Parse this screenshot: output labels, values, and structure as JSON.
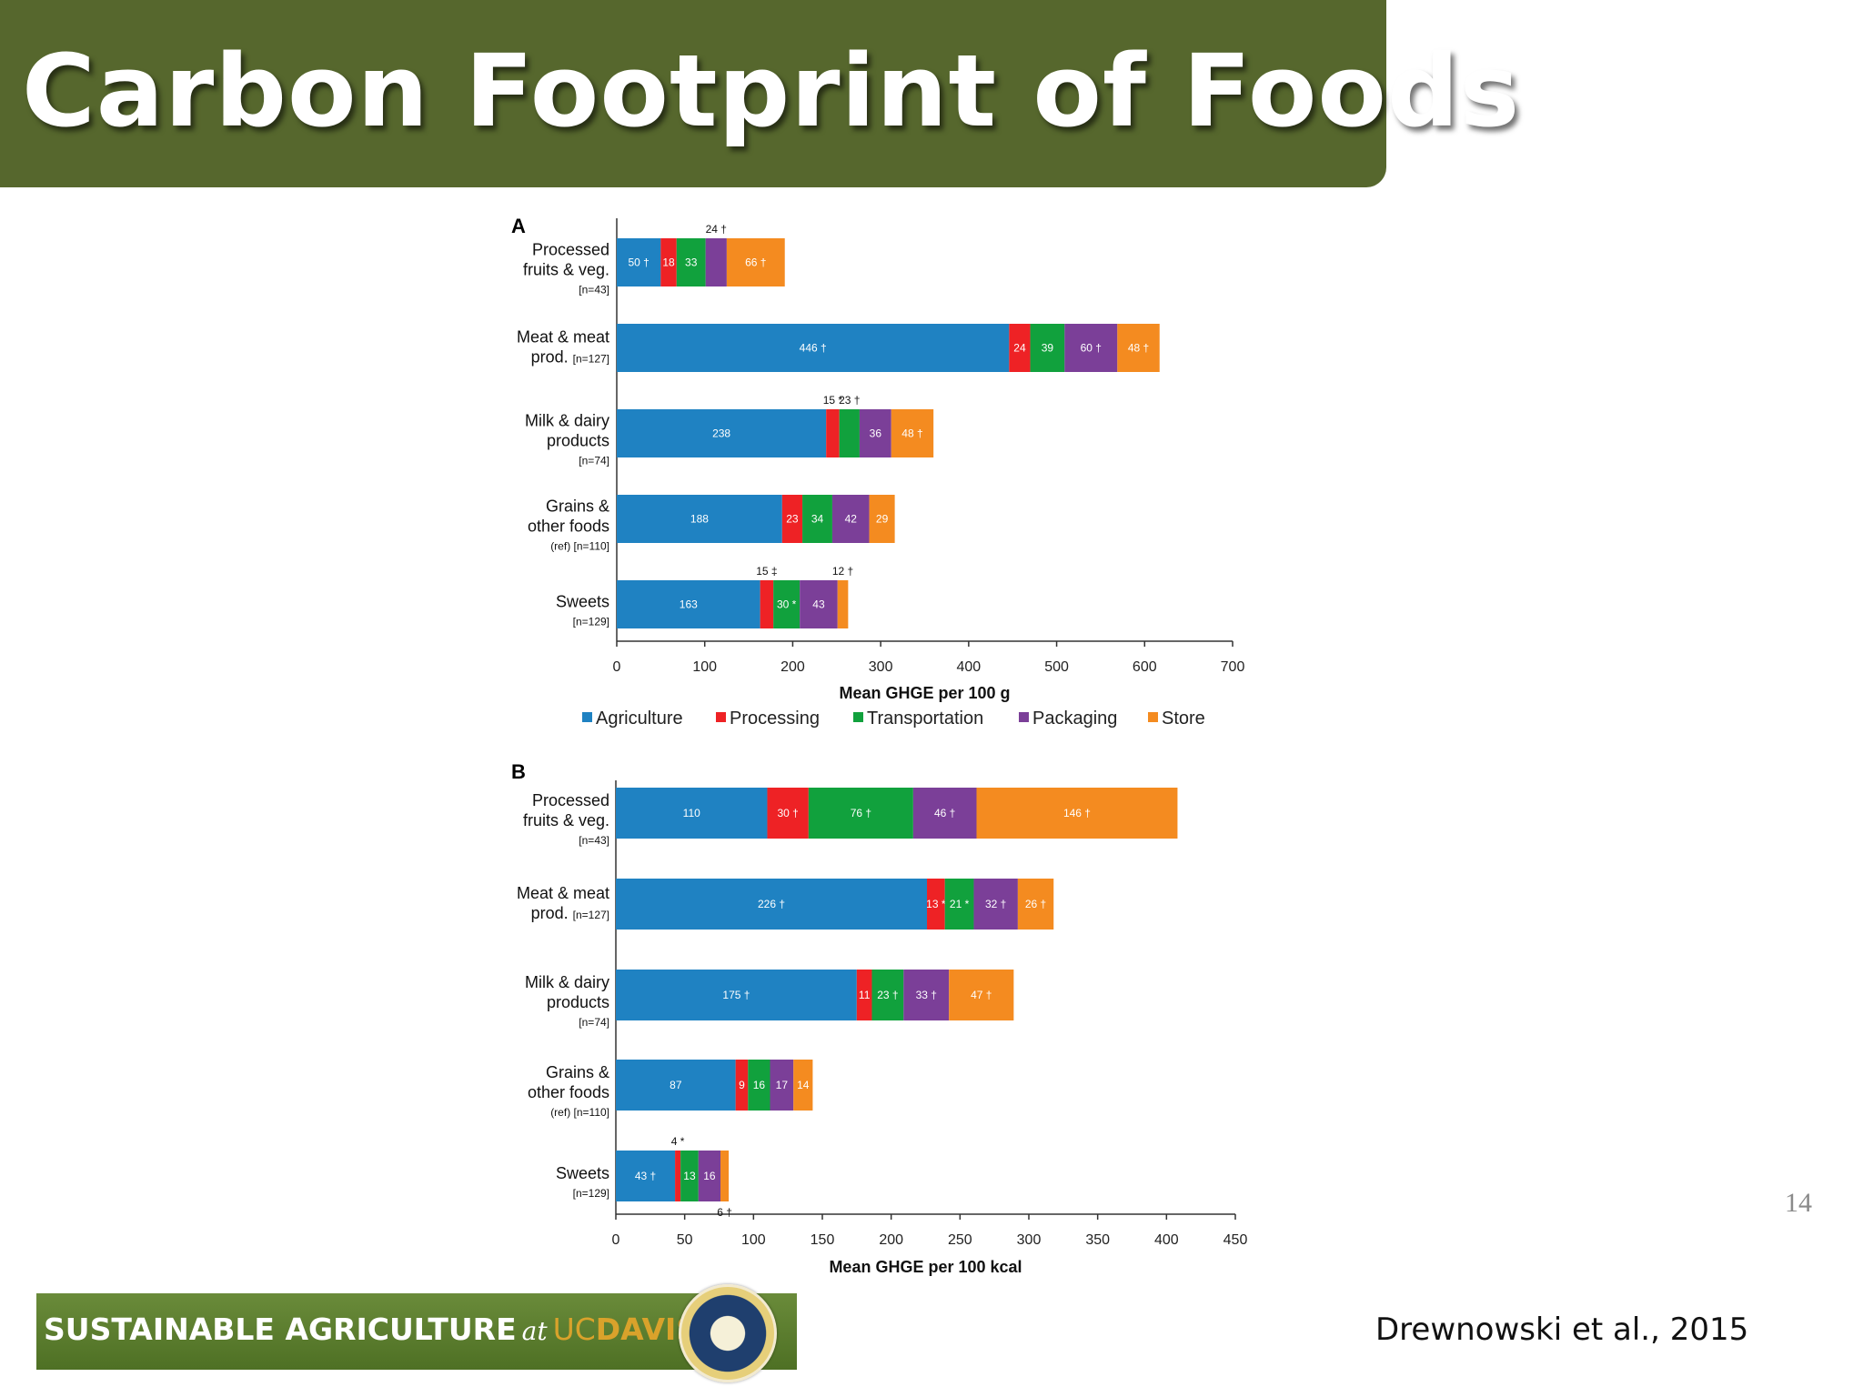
{
  "title": "Carbon Footprint of Foods",
  "page_number": "14",
  "citation": "Drewnowski et al., 2015",
  "banner": {
    "part1": "SUSTAINABLE  AGRICULTURE",
    "at": "at",
    "uc": "UC",
    "davis": "DAVIS"
  },
  "colors": {
    "title_bg": "#56672d",
    "agriculture": "#1f82c2",
    "processing": "#ee2225",
    "transportation": "#11a13d",
    "packaging": "#7b3f98",
    "store": "#f48b20"
  },
  "chart_data": [
    {
      "type": "bar",
      "orientation": "horizontal",
      "stacked": true,
      "panel_label": "A",
      "xlabel": "Mean GHGE per 100 g",
      "xlim": [
        0,
        700
      ],
      "xticks": [
        0,
        100,
        200,
        300,
        400,
        500,
        600,
        700
      ],
      "legend": [
        "Agriculture",
        "Processing",
        "Transportation",
        "Packaging",
        "Store"
      ],
      "categories": [
        {
          "lines": [
            "Processed",
            "fruits & veg."
          ],
          "n": "[n=43]"
        },
        {
          "lines": [
            "Meat & meat"
          ],
          "last": "prod.",
          "n": "[n=127]"
        },
        {
          "lines": [
            "Milk & dairy",
            "products"
          ],
          "n": "[n=74]"
        },
        {
          "lines": [
            "Grains &",
            "other foods"
          ],
          "n": "(ref) [n=110]"
        },
        {
          "lines": [
            "Sweets"
          ],
          "n": "[n=129]"
        }
      ],
      "series": [
        {
          "name": "Agriculture",
          "values": [
            50,
            446,
            238,
            188,
            163
          ],
          "labels": [
            "50 †",
            "446 †",
            "238",
            "188",
            "163"
          ]
        },
        {
          "name": "Processing",
          "values": [
            18,
            24,
            15,
            23,
            15
          ],
          "labels": [
            "18",
            "24",
            "",
            "23",
            ""
          ],
          "outside": [
            "",
            "",
            "15 *",
            "",
            "15 ‡"
          ]
        },
        {
          "name": "Transportation",
          "values": [
            33,
            39,
            23,
            34,
            30
          ],
          "labels": [
            "33",
            "39",
            "",
            "34",
            "30 *"
          ],
          "outside": [
            "",
            "",
            "23 †",
            "",
            ""
          ]
        },
        {
          "name": "Packaging",
          "values": [
            24,
            60,
            36,
            42,
            43
          ],
          "labels": [
            "",
            "60 †",
            "36",
            "42",
            "43"
          ],
          "outside": [
            "24 †",
            "",
            "",
            "",
            ""
          ]
        },
        {
          "name": "Store",
          "values": [
            66,
            48,
            48,
            29,
            12
          ],
          "labels": [
            "66 †",
            "48 †",
            "48 †",
            "29",
            ""
          ],
          "outside": [
            "",
            "",
            "",
            "",
            "12 †"
          ]
        }
      ]
    },
    {
      "type": "bar",
      "orientation": "horizontal",
      "stacked": true,
      "panel_label": "B",
      "xlabel": "Mean GHGE per 100 kcal",
      "xlim": [
        0,
        450
      ],
      "xticks": [
        0,
        50,
        100,
        150,
        200,
        250,
        300,
        350,
        400,
        450
      ],
      "categories": [
        {
          "lines": [
            "Processed",
            "fruits & veg."
          ],
          "n": "[n=43]"
        },
        {
          "lines": [
            "Meat & meat"
          ],
          "last": "prod.",
          "n": "[n=127]"
        },
        {
          "lines": [
            "Milk & dairy",
            "products"
          ],
          "n": "[n=74]"
        },
        {
          "lines": [
            "Grains &",
            "other foods"
          ],
          "n": "(ref) [n=110]"
        },
        {
          "lines": [
            "Sweets"
          ],
          "n": "[n=129]"
        }
      ],
      "series": [
        {
          "name": "Agriculture",
          "values": [
            110,
            226,
            175,
            87,
            43
          ],
          "labels": [
            "110",
            "226 †",
            "175 †",
            "87",
            "43 †"
          ]
        },
        {
          "name": "Processing",
          "values": [
            30,
            13,
            11,
            9,
            4
          ],
          "labels": [
            "30 †",
            "13 *",
            "11",
            "9",
            ""
          ],
          "outside": [
            "",
            "",
            "",
            "",
            "4 *"
          ]
        },
        {
          "name": "Transportation",
          "values": [
            76,
            21,
            23,
            16,
            13
          ],
          "labels": [
            "76 †",
            "21 *",
            "23 †",
            "16",
            "13"
          ]
        },
        {
          "name": "Packaging",
          "values": [
            46,
            32,
            33,
            17,
            16
          ],
          "labels": [
            "46 †",
            "32 †",
            "33 †",
            "17",
            "16"
          ]
        },
        {
          "name": "Store",
          "values": [
            146,
            26,
            47,
            14,
            6
          ],
          "labels": [
            "146 †",
            "26 †",
            "47 †",
            "14",
            ""
          ],
          "outside_below": [
            "",
            "",
            "",
            "",
            "6 †"
          ]
        }
      ]
    }
  ]
}
